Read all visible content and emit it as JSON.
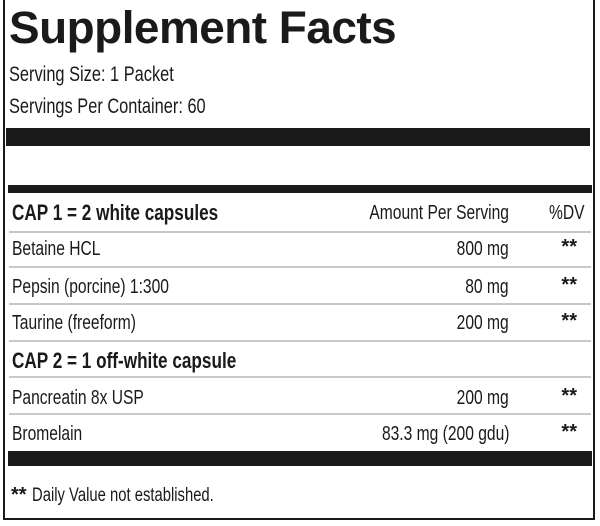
{
  "title": "Supplement Facts",
  "serving_size": "Serving Size: 1 Packet",
  "servings_per_container": "Servings Per Container: 60",
  "header": {
    "amount_label": "Amount Per Serving",
    "dv_label": "%DV"
  },
  "sections": [
    {
      "heading": "CAP 1 = 2 white capsules",
      "items": [
        {
          "name": "Betaine HCL",
          "amount": "800 mg",
          "dv": "**"
        },
        {
          "name": "Pepsin (porcine)  1:300",
          "amount": "80 mg",
          "dv": "**"
        },
        {
          "name": "Taurine (freeform)",
          "amount": "200 mg",
          "dv": "**"
        }
      ]
    },
    {
      "heading": "CAP 2 = 1 off-white capsule",
      "items": [
        {
          "name": "Pancreatin 8x USP",
          "amount": "200 mg",
          "dv": "**"
        },
        {
          "name": "Bromelain",
          "amount": "83.3 mg (200 gdu)",
          "dv": "**"
        }
      ]
    }
  ],
  "footnote": {
    "mark": "**",
    "text": "Daily Value not established."
  }
}
